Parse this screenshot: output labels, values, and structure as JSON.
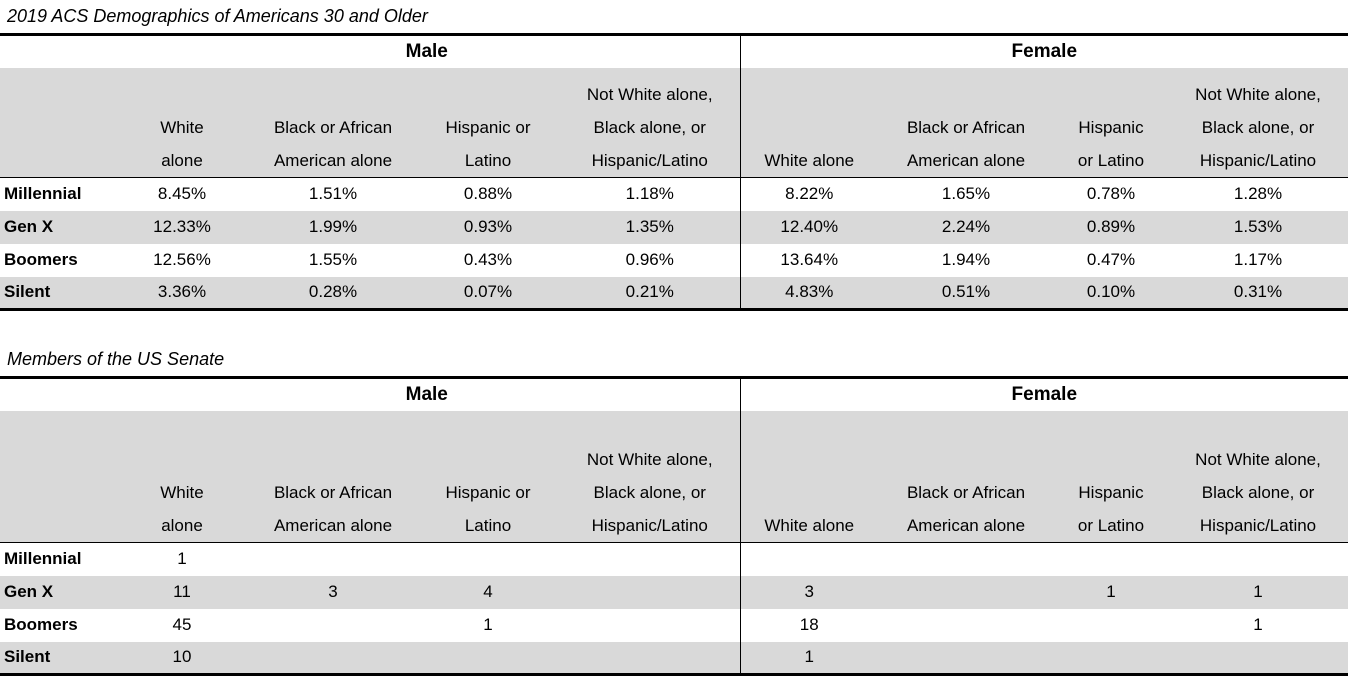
{
  "chart_data": [
    {
      "type": "table",
      "title": "2019 ACS Demographics of Americans 30 and Older",
      "group_headers": [
        "Male",
        "Female"
      ],
      "columns_male": [
        "White\nalone",
        "Black or African\nAmerican alone",
        "Hispanic or\nLatino",
        "Not White alone,\nBlack alone, or\nHispanic/Latino"
      ],
      "columns_female": [
        "White alone",
        "Black or African\nAmerican alone",
        "Hispanic\nor Latino",
        "Not White alone,\nBlack alone, or\nHispanic/Latino"
      ],
      "rows": [
        {
          "label": "Millennial",
          "cells": [
            "8.45%",
            "1.51%",
            "0.88%",
            "1.18%",
            "8.22%",
            "1.65%",
            "0.78%",
            "1.28%"
          ]
        },
        {
          "label": "Gen X",
          "cells": [
            "12.33%",
            "1.99%",
            "0.93%",
            "1.35%",
            "12.40%",
            "2.24%",
            "0.89%",
            "1.53%"
          ]
        },
        {
          "label": "Boomers",
          "cells": [
            "12.56%",
            "1.55%",
            "0.43%",
            "0.96%",
            "13.64%",
            "1.94%",
            "0.47%",
            "1.17%"
          ]
        },
        {
          "label": "Silent",
          "cells": [
            "3.36%",
            "0.28%",
            "0.07%",
            "0.21%",
            "4.83%",
            "0.51%",
            "0.10%",
            "0.31%"
          ]
        }
      ],
      "layout": {
        "striped_row_color": "#d9d9d9",
        "header_fill": "#d9d9d9",
        "border_color": "#000000"
      }
    },
    {
      "type": "table",
      "title": "Members of the US Senate",
      "group_headers": [
        "Male",
        "Female"
      ],
      "columns_male": [
        "White\nalone",
        "Black or African\nAmerican alone",
        "Hispanic or\nLatino",
        "Not White alone,\nBlack alone, or\nHispanic/Latino"
      ],
      "columns_female": [
        "White alone",
        "Black or African\nAmerican alone",
        "Hispanic\nor Latino",
        "Not White alone,\nBlack alone, or\nHispanic/Latino"
      ],
      "rows": [
        {
          "label": "Millennial",
          "cells": [
            "1",
            "",
            "",
            "",
            "",
            "",
            "",
            ""
          ]
        },
        {
          "label": "Gen X",
          "cells": [
            "11",
            "3",
            "4",
            "",
            "3",
            "",
            "1",
            "1"
          ]
        },
        {
          "label": "Boomers",
          "cells": [
            "45",
            "",
            "1",
            "",
            "18",
            "",
            "",
            "1"
          ]
        },
        {
          "label": "Silent",
          "cells": [
            "10",
            "",
            "",
            "",
            "1",
            "",
            "",
            ""
          ]
        }
      ],
      "layout": {
        "striped_row_color": "#d9d9d9",
        "header_fill": "#d9d9d9",
        "border_color": "#000000"
      }
    }
  ]
}
